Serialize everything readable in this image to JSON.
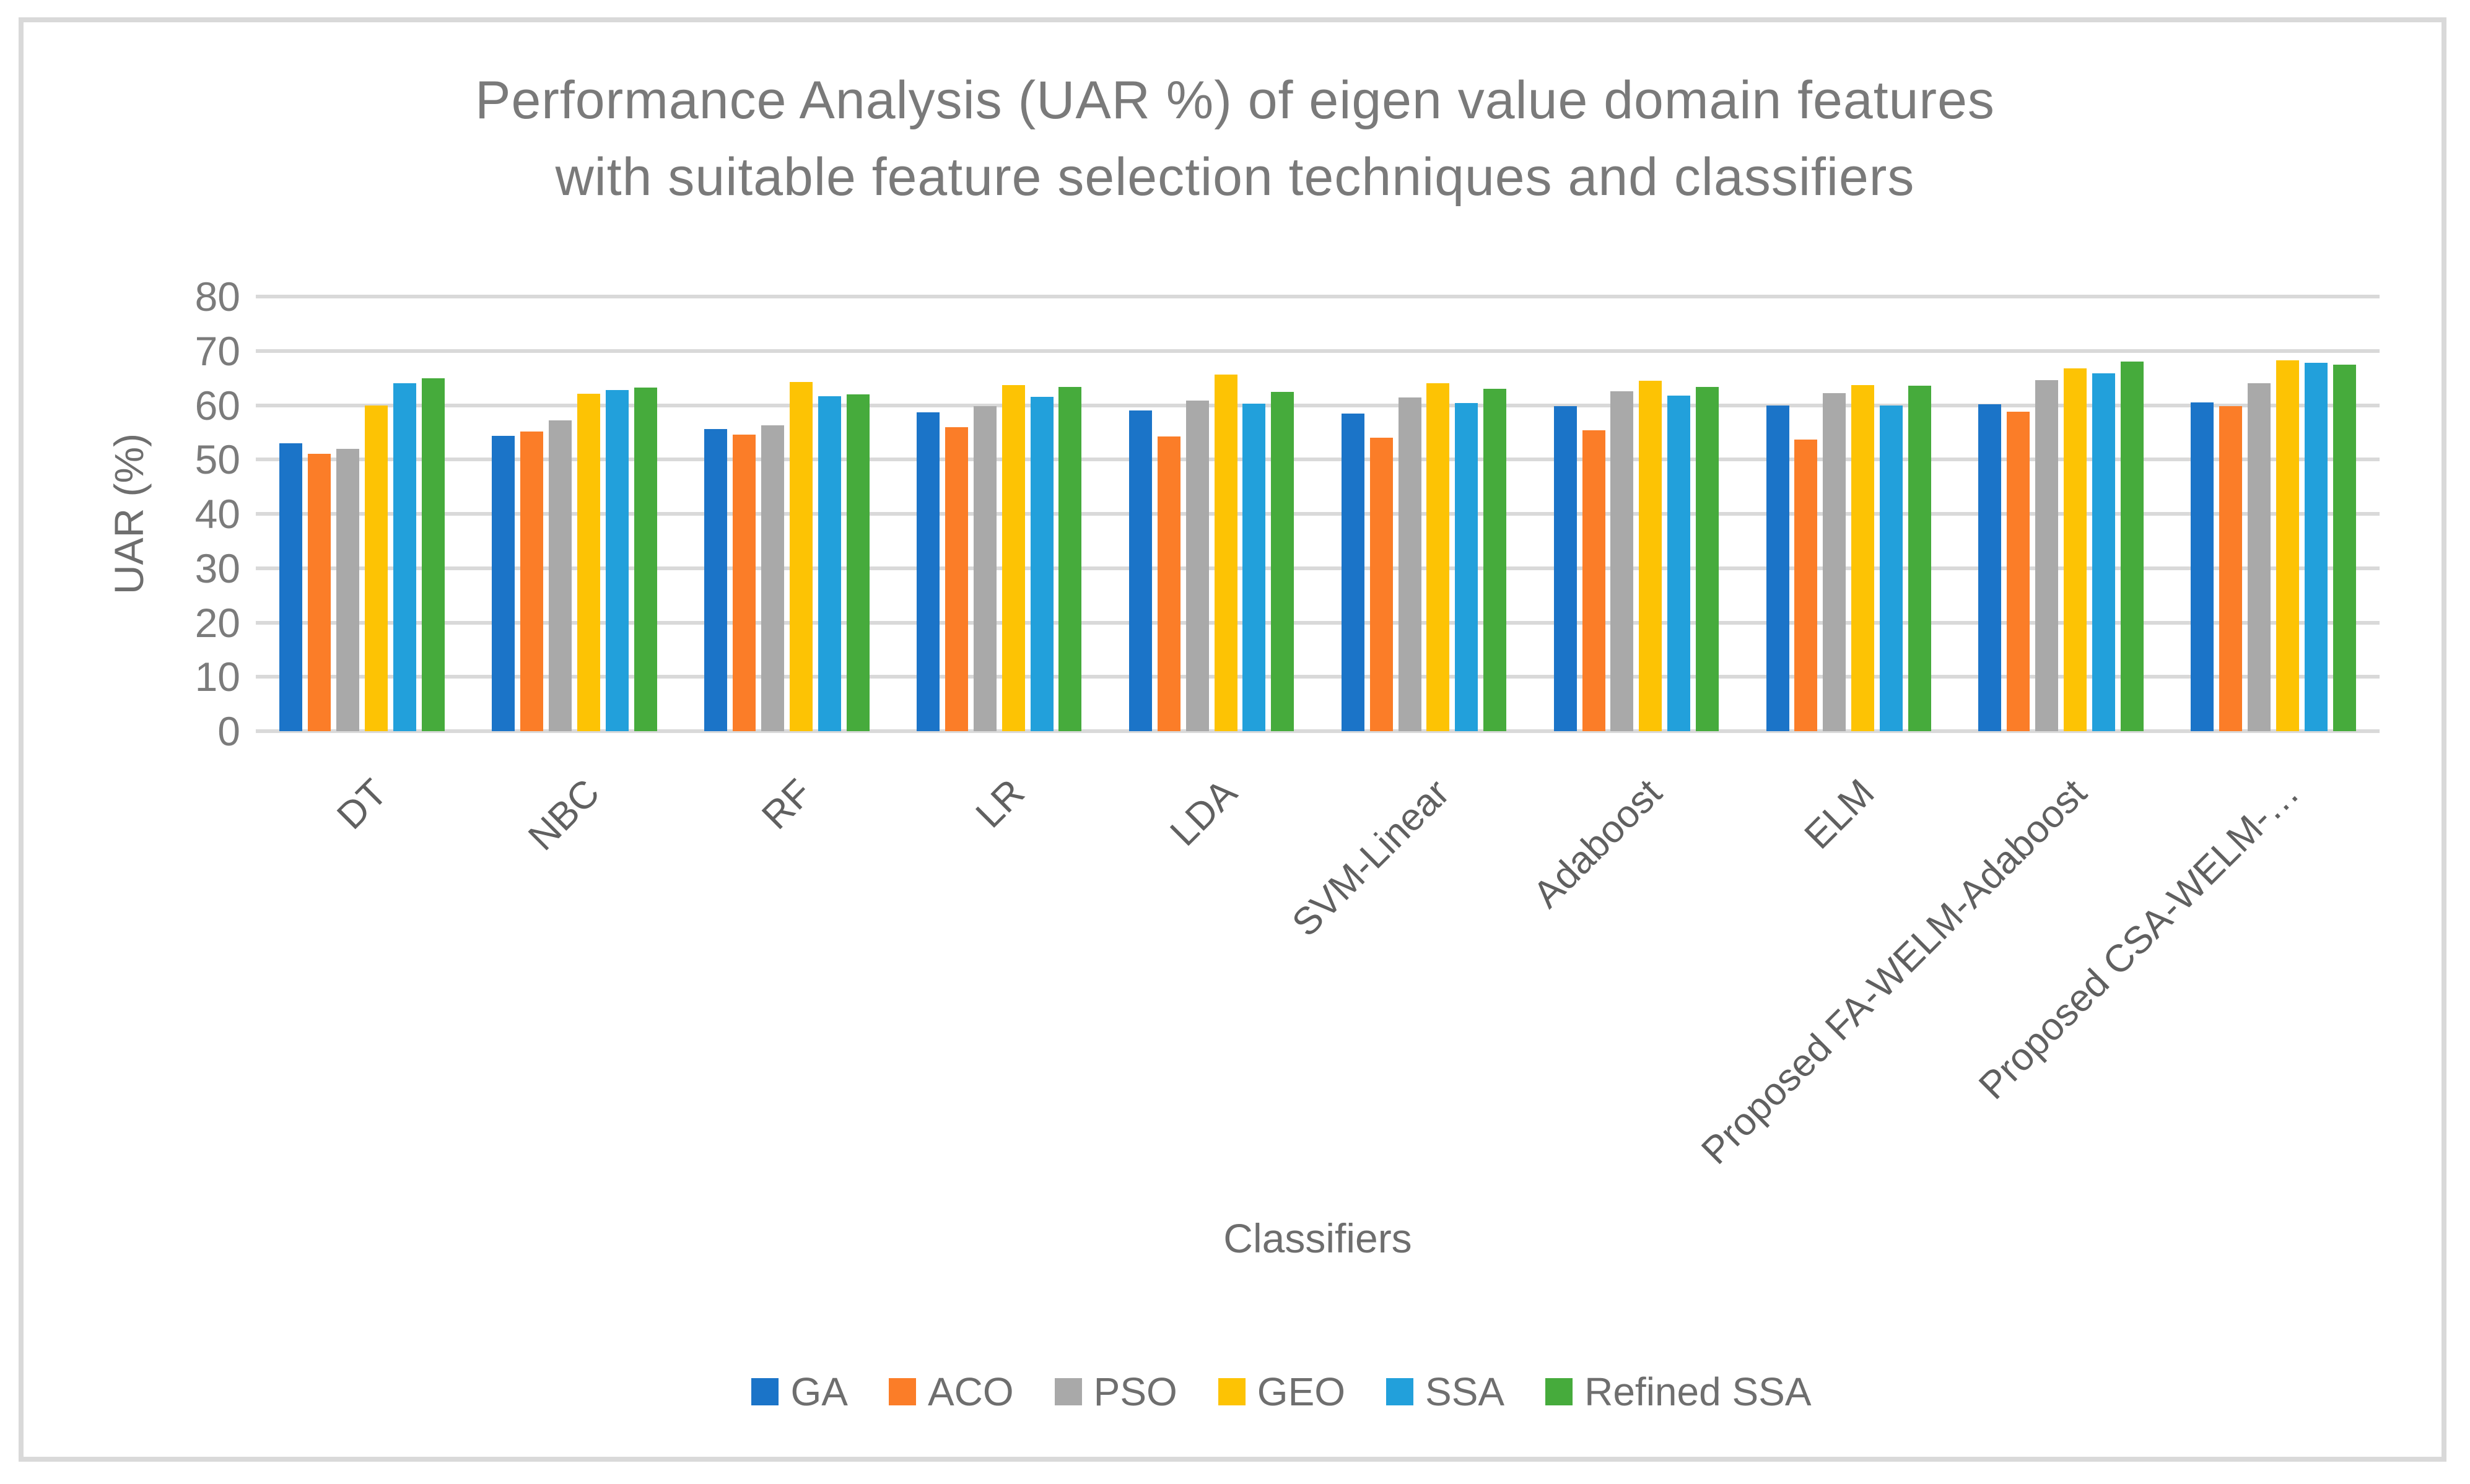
{
  "header": {
    "title_lines": [
      "Performance Analysis (UAR %) of eigen value domain features",
      "with suitable feature selection techniques and classifiers"
    ]
  },
  "chart_data": {
    "type": "bar",
    "title": "Performance Analysis (UAR %) of eigen value domain features with suitable feature selection techniques and classifiers",
    "xlabel": "Classifiers",
    "ylabel": "UAR (%)",
    "ylim": [
      0,
      80
    ],
    "yticks": [
      0,
      10,
      20,
      30,
      40,
      50,
      60,
      70,
      80
    ],
    "grid": true,
    "legend_position": "bottom",
    "categories": [
      "DT",
      "NBC",
      "RF",
      "LR",
      "LDA",
      "SVM-Linear",
      "Adaboost",
      "ELM",
      "Proposed FA-WELM-Adaboost",
      "Proposed CSA-WELM-…"
    ],
    "series": [
      {
        "name": "GA",
        "color": "#1B74C8",
        "values": [
          53.0,
          54.4,
          55.6,
          58.7,
          59.0,
          58.5,
          59.8,
          59.9,
          60.2,
          60.5
        ]
      },
      {
        "name": "ACO",
        "color": "#FB7D28",
        "values": [
          51.0,
          55.1,
          54.6,
          56.0,
          54.2,
          54.0,
          55.4,
          53.7,
          58.8,
          59.8
        ]
      },
      {
        "name": "PSO",
        "color": "#A9A9A9",
        "values": [
          52.0,
          57.2,
          56.3,
          59.8,
          60.9,
          61.4,
          62.6,
          62.2,
          64.6,
          64.0
        ]
      },
      {
        "name": "GEO",
        "color": "#FDC304",
        "values": [
          60.0,
          62.1,
          64.3,
          63.7,
          65.6,
          64.1,
          64.5,
          63.7,
          66.8,
          68.3
        ]
      },
      {
        "name": "SSA",
        "color": "#22A0DB",
        "values": [
          64.0,
          62.8,
          61.7,
          61.5,
          60.3,
          60.4,
          61.8,
          59.9,
          65.9,
          67.8
        ]
      },
      {
        "name": "Refined SSA",
        "color": "#46AB3C",
        "values": [
          65.0,
          63.3,
          62.0,
          63.4,
          62.4,
          63.0,
          63.4,
          63.6,
          68.0,
          67.5
        ]
      }
    ]
  },
  "colors": {
    "gridline": "#D9D9D9",
    "frame_border": "#D9D9D9",
    "title_text": "#7A7A7A",
    "axis_text": "#6E6E6E",
    "tick_text": "#7B7B7B",
    "category_text": "#606060"
  }
}
